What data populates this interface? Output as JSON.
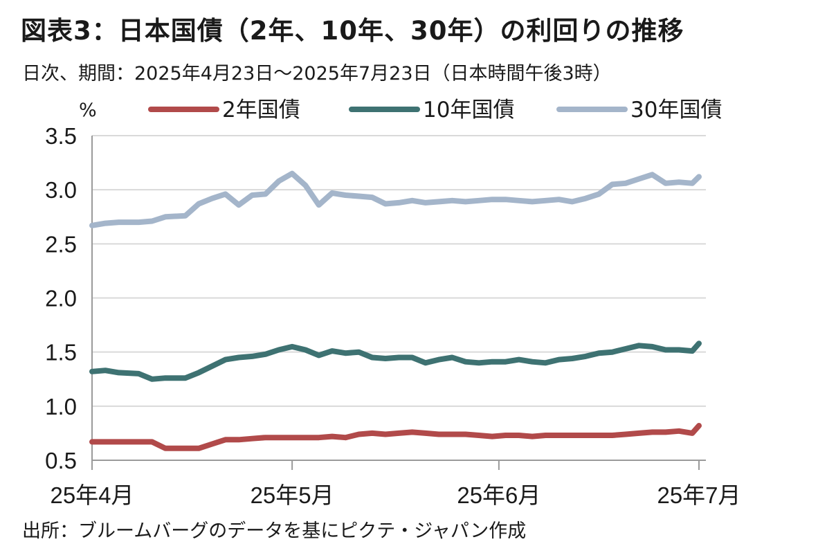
{
  "header": {
    "title": "図表3：日本国債（2年、10年、30年）の利回りの推移",
    "subtitle": "日次、期間：2025年4月23日～2025年7月23日（日本時間午後3時）"
  },
  "footer": {
    "source": "出所：ブルームバーグのデータを基にピクテ・ジャパン作成"
  },
  "chart_data": {
    "type": "line",
    "title": "図表3：日本国債（2年、10年、30年）の利回りの推移",
    "subtitle": "日次、期間：2025年4月23日～2025年7月23日（日本時間午後3時）",
    "unit_label": "%",
    "ylabel": "%",
    "ylim": [
      0.5,
      3.5
    ],
    "yticks": [
      0.5,
      1.0,
      1.5,
      2.0,
      2.5,
      3.0,
      3.5
    ],
    "ytick_labels": [
      "0.5",
      "1.0",
      "1.5",
      "2.0",
      "2.5",
      "3.0",
      "3.5"
    ],
    "xlim": [
      "2025-04-01",
      "2025-07-01"
    ],
    "xticks": [
      "2025-04-01",
      "2025-05-01",
      "2025-06-01",
      "2025-07-01"
    ],
    "xtick_labels": [
      "25年4月",
      "25年5月",
      "25年6月",
      "25年7月"
    ],
    "grid": "horizontal",
    "legend_position": "top",
    "x": [
      "2025-04-01",
      "2025-04-03",
      "2025-04-05",
      "2025-04-08",
      "2025-04-10",
      "2025-04-12",
      "2025-04-15",
      "2025-04-17",
      "2025-04-19",
      "2025-04-21",
      "2025-04-23",
      "2025-04-25",
      "2025-04-27",
      "2025-04-29",
      "2025-05-01",
      "2025-05-03",
      "2025-05-05",
      "2025-05-07",
      "2025-05-09",
      "2025-05-11",
      "2025-05-13",
      "2025-05-15",
      "2025-05-17",
      "2025-05-19",
      "2025-05-21",
      "2025-05-23",
      "2025-05-25",
      "2025-05-27",
      "2025-05-29",
      "2025-05-31",
      "2025-06-02",
      "2025-06-04",
      "2025-06-06",
      "2025-06-08",
      "2025-06-10",
      "2025-06-12",
      "2025-06-14",
      "2025-06-16",
      "2025-06-18",
      "2025-06-20",
      "2025-06-22",
      "2025-06-24",
      "2025-06-26",
      "2025-06-28",
      "2025-06-30",
      "2025-07-01"
    ],
    "series": [
      {
        "name": "2年国債",
        "color": "#b14a4a",
        "values": [
          0.67,
          0.67,
          0.67,
          0.67,
          0.67,
          0.61,
          0.61,
          0.61,
          0.65,
          0.69,
          0.69,
          0.7,
          0.71,
          0.71,
          0.71,
          0.71,
          0.71,
          0.72,
          0.71,
          0.74,
          0.75,
          0.74,
          0.75,
          0.76,
          0.75,
          0.74,
          0.74,
          0.74,
          0.73,
          0.72,
          0.73,
          0.73,
          0.72,
          0.73,
          0.73,
          0.73,
          0.73,
          0.73,
          0.73,
          0.74,
          0.75,
          0.76,
          0.76,
          0.77,
          0.75,
          0.82
        ]
      },
      {
        "name": "10年国債",
        "color": "#3e7272",
        "values": [
          1.32,
          1.33,
          1.31,
          1.3,
          1.25,
          1.26,
          1.26,
          1.31,
          1.37,
          1.43,
          1.45,
          1.46,
          1.48,
          1.52,
          1.55,
          1.52,
          1.47,
          1.51,
          1.49,
          1.5,
          1.45,
          1.44,
          1.45,
          1.45,
          1.4,
          1.43,
          1.45,
          1.41,
          1.4,
          1.41,
          1.41,
          1.43,
          1.41,
          1.4,
          1.43,
          1.44,
          1.46,
          1.49,
          1.5,
          1.53,
          1.56,
          1.55,
          1.52,
          1.52,
          1.51,
          1.58
        ]
      },
      {
        "name": "30年国債",
        "color": "#a4b5ca",
        "values": [
          2.67,
          2.69,
          2.7,
          2.7,
          2.71,
          2.75,
          2.76,
          2.87,
          2.92,
          2.96,
          2.86,
          2.95,
          2.96,
          3.08,
          3.15,
          3.04,
          2.86,
          2.97,
          2.95,
          2.94,
          2.93,
          2.87,
          2.88,
          2.9,
          2.88,
          2.89,
          2.9,
          2.89,
          2.9,
          2.91,
          2.91,
          2.9,
          2.89,
          2.9,
          2.91,
          2.89,
          2.92,
          2.96,
          3.05,
          3.06,
          3.1,
          3.14,
          3.06,
          3.07,
          3.06,
          3.12
        ]
      }
    ]
  }
}
